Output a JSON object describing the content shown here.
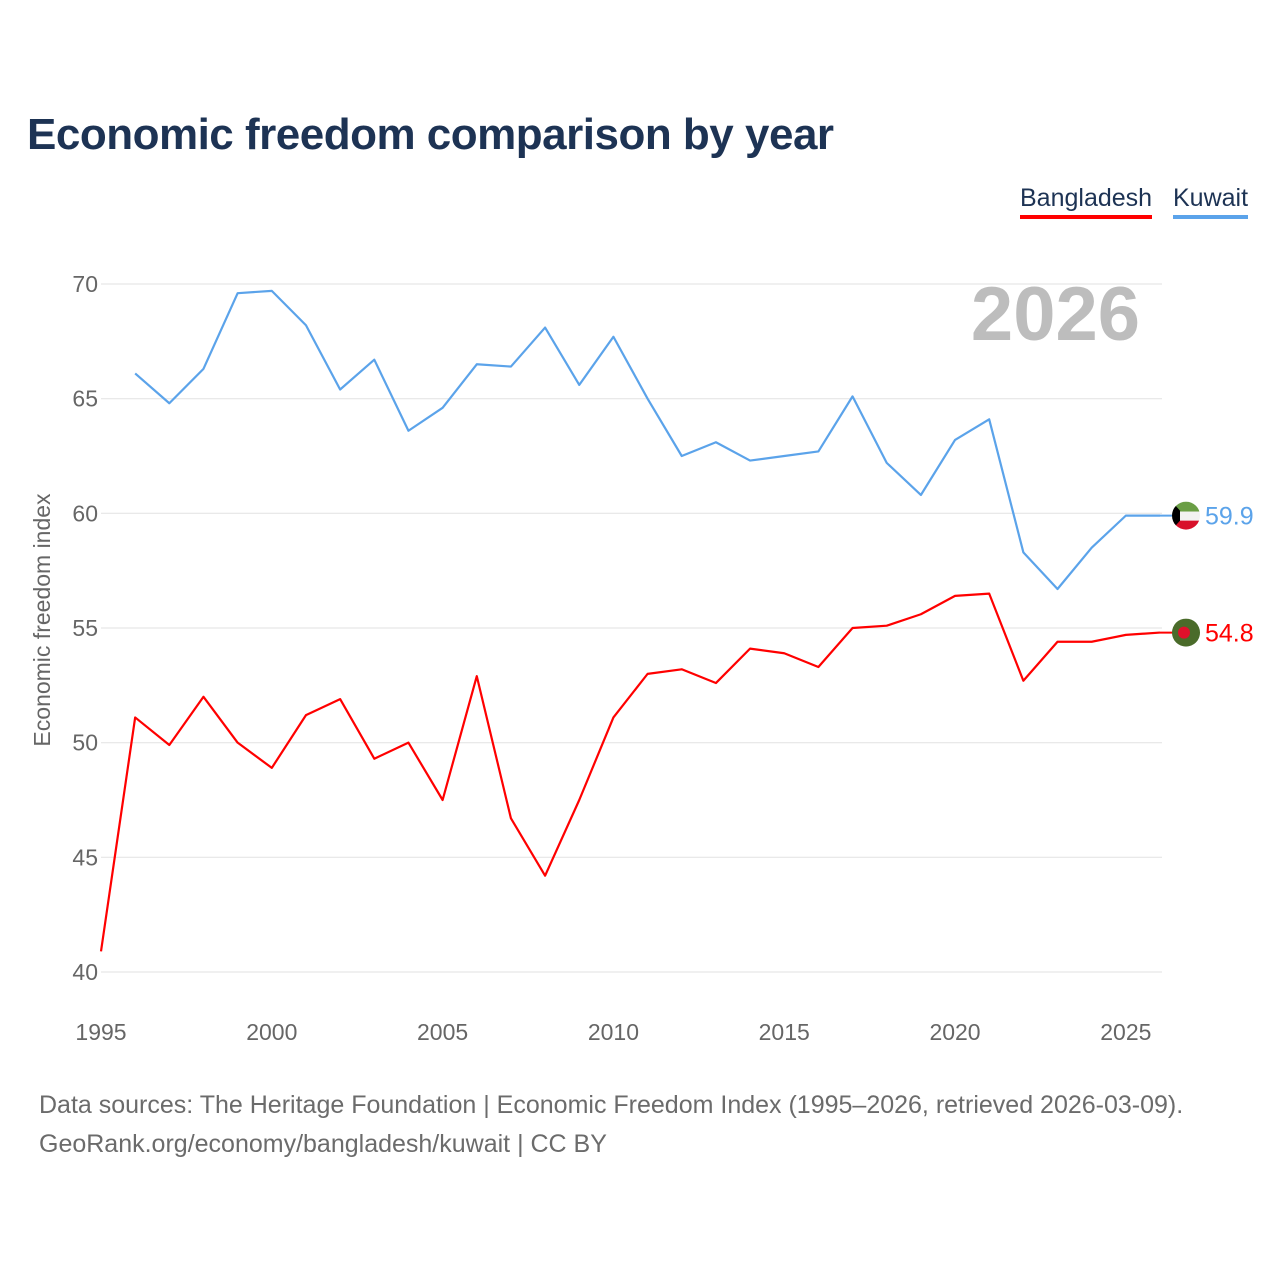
{
  "chart_data": {
    "type": "line",
    "title": "Economic freedom comparison by year",
    "xlabel": "",
    "ylabel": "Economic freedom index",
    "xlim": [
      1995,
      2026
    ],
    "ylim": [
      40,
      70
    ],
    "yticks": [
      40,
      45,
      50,
      55,
      60,
      65,
      70
    ],
    "xticks": [
      1995,
      2000,
      2005,
      2010,
      2015,
      2020,
      2025
    ],
    "grid": true,
    "legend_position": "top-right",
    "current_year_label": "2026",
    "series": [
      {
        "name": "Bangladesh",
        "color": "#ff0000",
        "end_label": "54.8",
        "x": [
          1995,
          1996,
          1997,
          1998,
          1999,
          2000,
          2001,
          2002,
          2003,
          2004,
          2005,
          2006,
          2007,
          2008,
          2009,
          2010,
          2011,
          2012,
          2013,
          2014,
          2015,
          2016,
          2017,
          2018,
          2019,
          2020,
          2021,
          2022,
          2023,
          2024,
          2025,
          2026
        ],
        "values": [
          40.9,
          51.1,
          49.9,
          52.0,
          50.0,
          48.9,
          51.2,
          51.9,
          49.3,
          50.0,
          47.5,
          52.9,
          46.7,
          44.2,
          47.5,
          51.1,
          53.0,
          53.2,
          52.6,
          54.1,
          53.9,
          53.3,
          55.0,
          55.1,
          55.6,
          56.4,
          56.5,
          52.7,
          54.4,
          54.4,
          54.7,
          54.8
        ]
      },
      {
        "name": "Kuwait",
        "color": "#5ba3ea",
        "end_label": "59.9",
        "x": [
          1996,
          1997,
          1998,
          1999,
          2000,
          2001,
          2002,
          2003,
          2004,
          2005,
          2006,
          2007,
          2008,
          2009,
          2010,
          2011,
          2012,
          2013,
          2014,
          2015,
          2016,
          2017,
          2018,
          2019,
          2020,
          2021,
          2022,
          2023,
          2024,
          2025,
          2026
        ],
        "values": [
          66.1,
          64.8,
          66.3,
          69.6,
          69.7,
          68.2,
          65.4,
          66.7,
          63.6,
          64.6,
          66.5,
          66.4,
          68.1,
          65.6,
          67.7,
          65.0,
          62.5,
          63.1,
          62.3,
          62.5,
          62.7,
          65.1,
          62.2,
          60.8,
          63.2,
          64.1,
          58.3,
          56.7,
          58.5,
          59.9,
          59.9
        ]
      }
    ]
  },
  "legend": {
    "bangladesh": "Bangladesh",
    "kuwait": "Kuwait"
  },
  "footer": {
    "line1": "Data sources: The Heritage Foundation | Economic Freedom Index (1995–2026, retrieved 2026-03-09).",
    "line2": "GeoRank.org/economy/bangladesh/kuwait | CC BY"
  }
}
